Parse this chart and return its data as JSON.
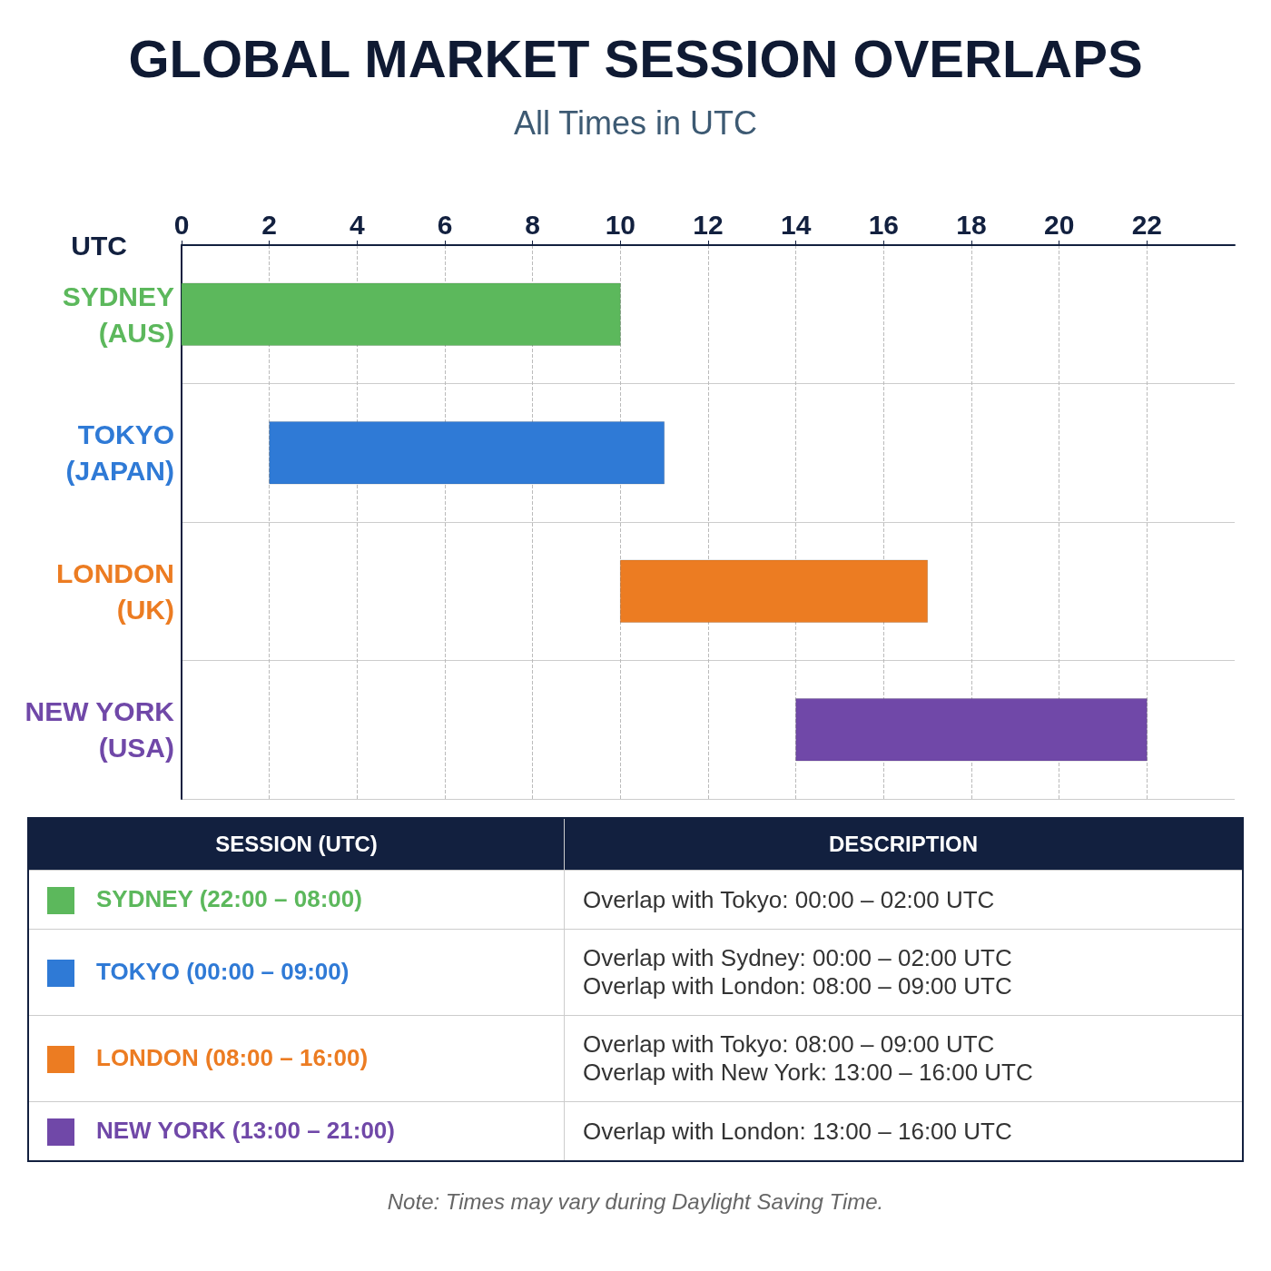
{
  "chart_data": {
    "type": "bar",
    "orientation": "horizontal",
    "title": "GLOBAL MARKET SESSION OVERLAPS",
    "subtitle": "All Times in UTC",
    "xlabel": "UTC",
    "categories": [
      "SYDNEY\n(AUS)",
      "TOKYO\n(JAPAN)",
      "LONDON\n(UK)",
      "NEW YORK\n(USA)"
    ],
    "values": [
      10,
      9,
      7,
      8
    ],
    "base": [
      0,
      2,
      10,
      14
    ],
    "colors": [
      "#5cb85c",
      "#2f7ad6",
      "#ec7c22",
      "#7048a8"
    ],
    "xlim": [
      0,
      24
    ],
    "xticks": [
      0,
      2,
      4,
      6,
      8,
      10,
      12,
      14,
      16,
      18,
      20,
      22
    ],
    "grid": true,
    "annotations": [
      "SESSION (UTC)",
      "DESCRIPTION",
      "SYDNEY (22:00 – 08:00)",
      "Overlap with Tokyo:  00:00 – 02:00 UTC",
      "TOKYO (00:00 – 09:00)",
      "Overlap with Sydney: 00:00 – 02:00 UTC\nOverlap with London: 08:00 – 09:00 UTC",
      "LONDON (08:00 – 16:00)",
      "Overlap with Tokyo:  08:00 – 09:00 UTC\nOverlap with New York:  13:00 – 16:00 UTC",
      "NEW YORK (13:00 – 21:00)",
      "Overlap with London:  13:00 – 16:00 UTC",
      "Note: Times may vary during Daylight Saving Time."
    ]
  }
}
